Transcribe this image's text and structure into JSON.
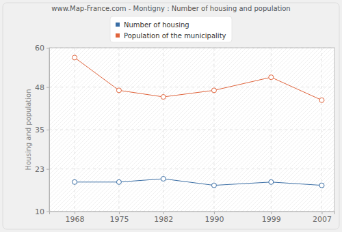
{
  "chart_data": {
    "type": "line",
    "title": "www.Map-France.com - Montigny : Number of housing and population",
    "y_label": "Housing and population",
    "x": [
      1968,
      1975,
      1982,
      1990,
      1999,
      2007
    ],
    "xlim": [
      1964,
      2009
    ],
    "xticks": [
      1968,
      1975,
      1982,
      1990,
      1999,
      2007
    ],
    "ylim": [
      10,
      60
    ],
    "yticks": [
      10,
      23,
      35,
      48,
      60
    ],
    "grid": true,
    "legend": "top",
    "series": [
      {
        "name": "Number of housing",
        "color": "#3a6ea5",
        "marker": "circle",
        "values": [
          19,
          19,
          20,
          18,
          19,
          18
        ]
      },
      {
        "name": "Population of the municipality",
        "color": "#e0643c",
        "marker": "circle",
        "values": [
          57,
          47,
          45,
          47,
          51,
          44
        ]
      }
    ]
  }
}
